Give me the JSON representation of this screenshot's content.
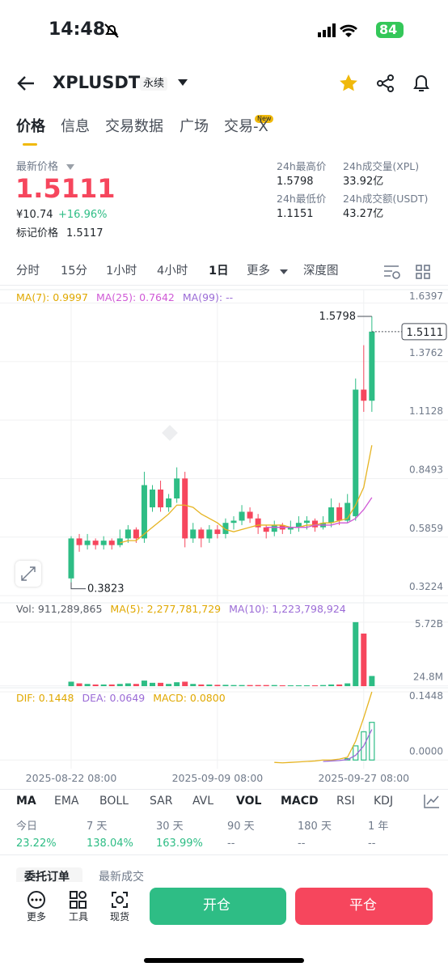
{
  "status": {
    "time": "14:48",
    "battery": "84"
  },
  "header": {
    "symbol": "XPLUSDT",
    "tag": "永续"
  },
  "tabs": [
    "价格",
    "信息",
    "交易数据",
    "广场",
    "交易-X"
  ],
  "tab_badge": "New",
  "price": {
    "label": "最新价格",
    "last": "1.5111",
    "cny": "¥10.74",
    "change": "+16.96%",
    "mark_label": "标记价格",
    "mark": "1.5117"
  },
  "stats": [
    {
      "label": "24h最高价",
      "value": "1.5798"
    },
    {
      "label": "24h成交量(XPL)",
      "value": "33.92亿"
    },
    {
      "label": "24h最低价",
      "value": "1.1151"
    },
    {
      "label": "24h成交额(USDT)",
      "value": "43.27亿"
    }
  ],
  "intervals": [
    "分时",
    "15分",
    "1小时",
    "4小时",
    "1日",
    "更多",
    "深度图"
  ],
  "chart_data": {
    "type": "candlestick",
    "categories": [
      "2025-08-22 08:00",
      null,
      null,
      null,
      null,
      null,
      null,
      null,
      null,
      null,
      null,
      null,
      null,
      null,
      null,
      null,
      null,
      null,
      "2025-09-09 08:00",
      null,
      null,
      null,
      null,
      null,
      null,
      null,
      null,
      null,
      null,
      null,
      null,
      null,
      null,
      null,
      null,
      null,
      "2025-09-27 08:00",
      null
    ],
    "open": [
      0.4,
      0.58,
      0.55,
      0.57,
      0.55,
      0.57,
      0.55,
      0.58,
      0.62,
      0.58,
      0.72,
      0.8,
      0.72,
      0.76,
      0.85,
      0.58,
      0.62,
      0.58,
      0.62,
      0.6,
      0.65,
      0.66,
      0.7,
      0.67,
      0.63,
      0.61,
      0.64,
      0.62,
      0.63,
      0.65,
      0.66,
      0.63,
      0.65,
      0.72,
      0.66,
      0.68,
      1.25,
      1.2
    ],
    "high": [
      0.59,
      0.6,
      0.6,
      0.58,
      0.59,
      0.58,
      0.62,
      0.64,
      0.63,
      0.88,
      0.82,
      0.84,
      0.78,
      0.9,
      0.88,
      0.65,
      0.63,
      0.64,
      0.64,
      0.67,
      0.68,
      0.73,
      0.72,
      0.69,
      0.64,
      0.66,
      0.65,
      0.66,
      0.68,
      0.68,
      0.67,
      0.68,
      0.76,
      0.74,
      0.78,
      1.3,
      1.45,
      1.5798
    ],
    "low": [
      0.3823,
      0.52,
      0.53,
      0.53,
      0.53,
      0.53,
      0.54,
      0.56,
      0.56,
      0.56,
      0.7,
      0.7,
      0.7,
      0.74,
      0.54,
      0.56,
      0.54,
      0.56,
      0.58,
      0.58,
      0.62,
      0.64,
      0.65,
      0.6,
      0.58,
      0.59,
      0.6,
      0.6,
      0.61,
      0.62,
      0.61,
      0.62,
      0.63,
      0.64,
      0.65,
      0.66,
      1.15,
      1.15
    ],
    "close": [
      0.58,
      0.55,
      0.57,
      0.55,
      0.57,
      0.55,
      0.58,
      0.62,
      0.58,
      0.82,
      0.8,
      0.72,
      0.76,
      0.85,
      0.58,
      0.62,
      0.58,
      0.62,
      0.6,
      0.65,
      0.66,
      0.7,
      0.67,
      0.63,
      0.61,
      0.64,
      0.62,
      0.63,
      0.65,
      0.66,
      0.63,
      0.65,
      0.72,
      0.66,
      0.74,
      1.25,
      1.2,
      1.5111
    ],
    "volume": [
      400000000,
      250000000,
      200000000,
      150000000,
      150000000,
      150000000,
      200000000,
      250000000,
      200000000,
      500000000,
      300000000,
      300000000,
      200000000,
      350000000,
      400000000,
      200000000,
      150000000,
      150000000,
      120000000,
      120000000,
      100000000,
      100000000,
      100000000,
      100000000,
      100000000,
      100000000,
      80000000,
      80000000,
      80000000,
      80000000,
      80000000,
      100000000,
      150000000,
      150000000,
      250000000,
      5720000000,
      4700000000,
      911289865
    ],
    "ma7": [
      null,
      null,
      null,
      null,
      null,
      null,
      0.56,
      0.57,
      0.57,
      0.6,
      0.63,
      0.66,
      0.69,
      0.73,
      0.73,
      0.72,
      0.69,
      0.67,
      0.65,
      0.62,
      0.61,
      0.62,
      0.63,
      0.64,
      0.64,
      0.64,
      0.64,
      0.63,
      0.63,
      0.64,
      0.64,
      0.65,
      0.65,
      0.66,
      0.67,
      0.73,
      0.81,
      0.9997
    ],
    "ma25": [
      null,
      null,
      null,
      null,
      null,
      null,
      null,
      null,
      null,
      null,
      null,
      null,
      null,
      null,
      null,
      null,
      null,
      null,
      null,
      null,
      null,
      null,
      null,
      null,
      0.63,
      0.63,
      0.63,
      0.63,
      0.63,
      0.63,
      0.64,
      0.64,
      0.64,
      0.65,
      0.65,
      0.67,
      0.71,
      0.7642
    ],
    "dif": [
      null,
      null,
      null,
      null,
      null,
      null,
      null,
      null,
      null,
      null,
      null,
      null,
      null,
      null,
      null,
      null,
      null,
      null,
      null,
      null,
      null,
      null,
      null,
      null,
      null,
      -0.005,
      -0.006,
      -0.005,
      -0.004,
      -0.003,
      -0.002,
      0.0,
      0.0,
      0.002,
      0.006,
      0.04,
      0.09,
      0.1448
    ],
    "dea": [
      null,
      null,
      null,
      null,
      null,
      null,
      null,
      null,
      null,
      null,
      null,
      null,
      null,
      null,
      null,
      null,
      null,
      null,
      null,
      null,
      null,
      null,
      null,
      null,
      null,
      null,
      null,
      null,
      null,
      null,
      null,
      -0.003,
      -0.002,
      -0.001,
      0.001,
      0.01,
      0.03,
      0.0649
    ],
    "macd": [
      null,
      null,
      null,
      null,
      null,
      null,
      null,
      null,
      null,
      null,
      null,
      null,
      null,
      null,
      null,
      null,
      null,
      null,
      null,
      null,
      null,
      null,
      null,
      null,
      null,
      null,
      null,
      null,
      null,
      null,
      null,
      null,
      null,
      null,
      0.003,
      0.03,
      0.06,
      0.08
    ],
    "ylim": [
      0.29,
      1.7
    ],
    "yticks": [
      1.6397,
      1.3762,
      1.1128,
      0.8493,
      0.5859,
      0.3224
    ],
    "volume_ylim": [
      0,
      6000000000
    ],
    "volume_yticks": [
      {
        "value": 5720000000,
        "label": "5.72B"
      },
      {
        "value": 24800000,
        "label": "24.8M"
      }
    ],
    "macd_ylim": [
      -0.015,
      0.1448
    ],
    "macd_yticks": [
      0.1448,
      {
        "value": 0,
        "label": "0.0000"
      }
    ],
    "high_label": 1.5798,
    "low_label": 0.3823,
    "last_label": 1.5111,
    "up_color": "#2ebd85",
    "down_color": "#f6465d",
    "ma7_color": "#e6b422",
    "ma25_color": "#d05ad6",
    "dif_color": "#e6b422",
    "dea_color": "#9b6bd6",
    "macd_color": "#2ebd85",
    "price_legend": [
      {
        "text": "MA(7): 0.9997",
        "color": "#e0a800"
      },
      {
        "text": "MA(25): 0.7642",
        "color": "#d05ad6"
      },
      {
        "text": "MA(99): --",
        "color": "#9b6bd6"
      }
    ],
    "volume_legend": [
      {
        "text": "Vol: 911,289,865",
        "color": "#555a63"
      },
      {
        "text": "MA(5): 2,277,781,729",
        "color": "#e0a800"
      },
      {
        "text": "MA(10): 1,223,798,924",
        "color": "#9b6bd6"
      }
    ],
    "macd_legend": [
      {
        "text": "DIF: 0.1448",
        "color": "#e0a800"
      },
      {
        "text": "DEA: 0.0649",
        "color": "#9b6bd6"
      },
      {
        "text": "MACD: 0.0800",
        "color": "#e0a800"
      }
    ],
    "grid": true
  },
  "indicators": [
    "MA",
    "EMA",
    "BOLL",
    "SAR",
    "AVL",
    "VOL",
    "MACD",
    "RSI",
    "KDJ"
  ],
  "performance": [
    {
      "period": "今日",
      "value": "23.22%"
    },
    {
      "period": "7 天",
      "value": "138.04%"
    },
    {
      "period": "30 天",
      "value": "163.99%"
    },
    {
      "period": "90 天",
      "value": "--"
    },
    {
      "period": "180 天",
      "value": "--"
    },
    {
      "period": "1 年",
      "value": "--"
    }
  ],
  "order_tabs": [
    "委托订单",
    "最新成交"
  ],
  "bottom": {
    "more": "更多",
    "tools": "工具",
    "spot": "现货",
    "open": "开仓",
    "close": "平仓"
  }
}
